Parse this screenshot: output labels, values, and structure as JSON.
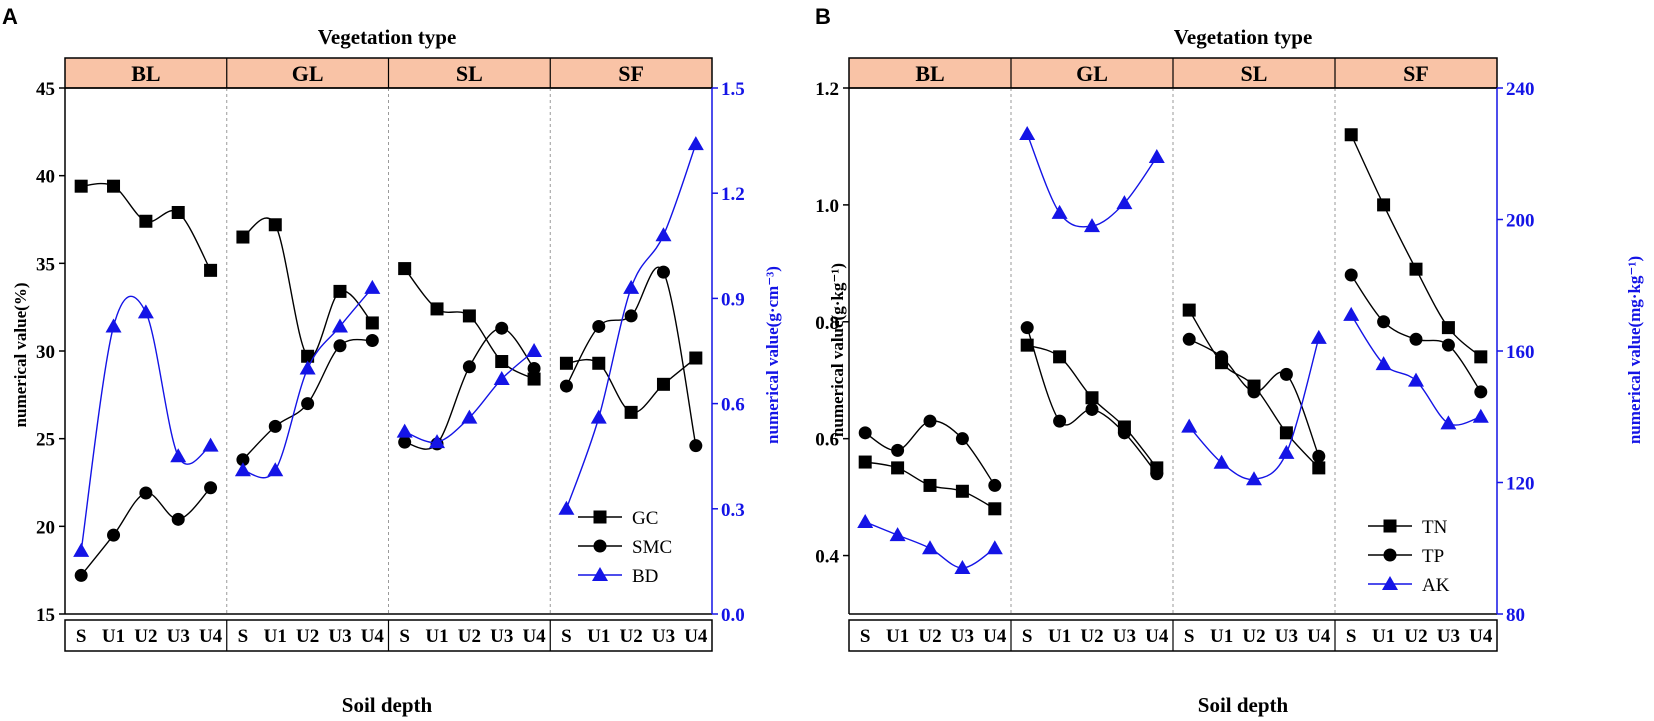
{
  "colors": {
    "black": "#000000",
    "blue": "#1414e6",
    "header_fill": "#f9c3a6",
    "divider": "#9a9a9a"
  },
  "chart_data": [
    {
      "panel": "A",
      "type": "line",
      "title": "Vegetation type",
      "groups": [
        "BL",
        "GL",
        "SL",
        "SF"
      ],
      "xlabel": "Soil depth",
      "categories": [
        "S",
        "U1",
        "U2",
        "U3",
        "U4",
        "S",
        "U1",
        "U2",
        "U3",
        "U4",
        "S",
        "U1",
        "U2",
        "U3",
        "U4",
        "S",
        "U1",
        "U2",
        "U3",
        "U4"
      ],
      "ylabel_left": "numerical value(%)",
      "ylabel_right": "numerical value(g·cm⁻³)",
      "ylim_left": [
        15,
        45
      ],
      "yticks_left": [
        "15",
        "20",
        "25",
        "30",
        "35",
        "40",
        "45"
      ],
      "ylim_right": [
        0,
        1.5
      ],
      "yticks_right": [
        "0.0",
        "0.3",
        "0.6",
        "0.9",
        "1.2",
        "1.5"
      ],
      "legend": "bottom-right",
      "series": [
        {
          "name": "GC",
          "axis": "left",
          "color": "#000000",
          "marker": "square",
          "values": [
            39.4,
            39.4,
            37.4,
            37.9,
            34.6,
            36.5,
            37.2,
            29.7,
            33.4,
            31.6,
            34.7,
            32.4,
            32.0,
            29.4,
            28.4,
            29.3,
            29.3,
            26.5,
            28.1,
            29.6
          ]
        },
        {
          "name": "SMC",
          "axis": "left",
          "color": "#000000",
          "marker": "circle",
          "values": [
            17.2,
            19.5,
            21.9,
            20.4,
            22.2,
            23.8,
            25.7,
            27.0,
            30.3,
            30.6,
            24.8,
            24.7,
            29.1,
            31.3,
            29.0,
            28.0,
            31.4,
            32.0,
            34.5,
            24.6
          ]
        },
        {
          "name": "BD",
          "axis": "right",
          "color": "#1414e6",
          "marker": "triangle",
          "values": [
            0.18,
            0.82,
            0.86,
            0.45,
            0.48,
            0.41,
            0.41,
            0.7,
            0.82,
            0.93,
            0.52,
            0.49,
            0.56,
            0.67,
            0.75,
            0.3,
            0.56,
            0.93,
            1.08,
            1.34
          ]
        }
      ]
    },
    {
      "panel": "B",
      "type": "line",
      "title": "Vegetation type",
      "groups": [
        "BL",
        "GL",
        "SL",
        "SF"
      ],
      "xlabel": "Soil depth",
      "categories": [
        "S",
        "U1",
        "U2",
        "U3",
        "U4",
        "S",
        "U1",
        "U2",
        "U3",
        "U4",
        "S",
        "U1",
        "U2",
        "U3",
        "U4",
        "S",
        "U1",
        "U2",
        "U3",
        "U4"
      ],
      "ylabel_left": "numerical value(g·kg⁻¹)",
      "ylabel_right": "numerical value(mg·kg⁻¹)",
      "ylim_left": [
        0.3,
        1.2
      ],
      "yticks_left": [
        "0.4",
        "0.6",
        "0.8",
        "1.0",
        "1.2"
      ],
      "ylim_right": [
        80,
        240
      ],
      "yticks_right": [
        "80",
        "120",
        "160",
        "200",
        "240"
      ],
      "legend": "bottom-right",
      "series": [
        {
          "name": "TN",
          "axis": "left",
          "color": "#000000",
          "marker": "square",
          "values": [
            0.56,
            0.55,
            0.52,
            0.51,
            0.48,
            0.76,
            0.74,
            0.67,
            0.62,
            0.55,
            0.82,
            0.73,
            0.69,
            0.61,
            0.55,
            1.12,
            1.0,
            0.89,
            0.79,
            0.74
          ]
        },
        {
          "name": "TP",
          "axis": "left",
          "color": "#000000",
          "marker": "circle",
          "values": [
            0.61,
            0.58,
            0.63,
            0.6,
            0.52,
            0.79,
            0.63,
            0.65,
            0.61,
            0.54,
            0.77,
            0.74,
            0.68,
            0.71,
            0.57,
            0.88,
            0.8,
            0.77,
            0.76,
            0.68
          ]
        },
        {
          "name": "AK",
          "axis": "right",
          "color": "#1414e6",
          "marker": "triangle",
          "values": [
            108,
            104,
            100,
            94,
            100,
            226,
            202,
            198,
            205,
            219,
            137,
            126,
            121,
            129,
            164,
            171,
            156,
            151,
            138,
            140
          ]
        }
      ]
    }
  ]
}
